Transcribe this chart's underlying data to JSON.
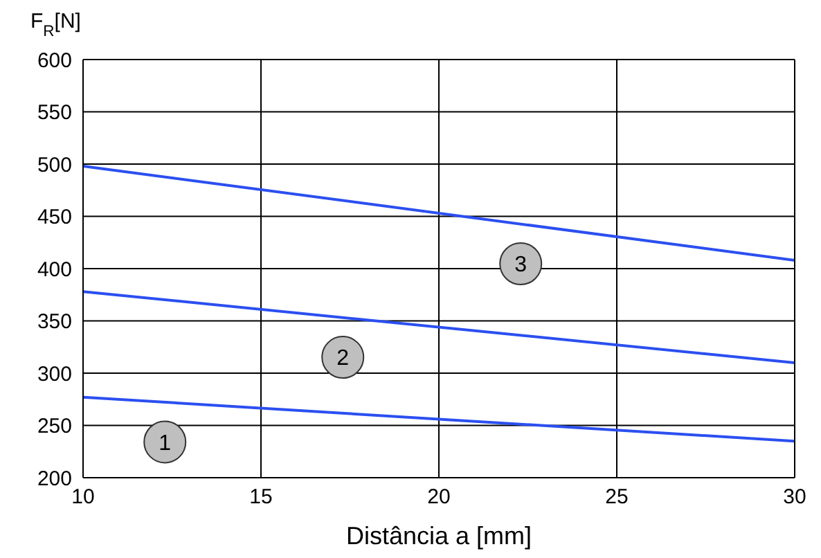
{
  "chart_data": {
    "type": "line",
    "xlabel": "Distância a [mm]",
    "ylabel": "F$_{R}$[N]",
    "x": [
      10,
      30
    ],
    "series": [
      {
        "name": "1",
        "color": "#2b4ff0",
        "values": [
          277,
          235
        ]
      },
      {
        "name": "2",
        "color": "#2b4ff0",
        "values": [
          378,
          310
        ]
      },
      {
        "name": "3",
        "color": "#2b4ff0",
        "values": [
          498,
          408
        ]
      }
    ],
    "xlim": [
      10,
      30
    ],
    "xticks": [
      10,
      15,
      20,
      25,
      30
    ],
    "ylim": [
      200,
      600
    ],
    "yticks": [
      200,
      250,
      300,
      350,
      400,
      450,
      500,
      550,
      600
    ],
    "grid": true,
    "marker": "none",
    "line_style": "solid"
  }
}
